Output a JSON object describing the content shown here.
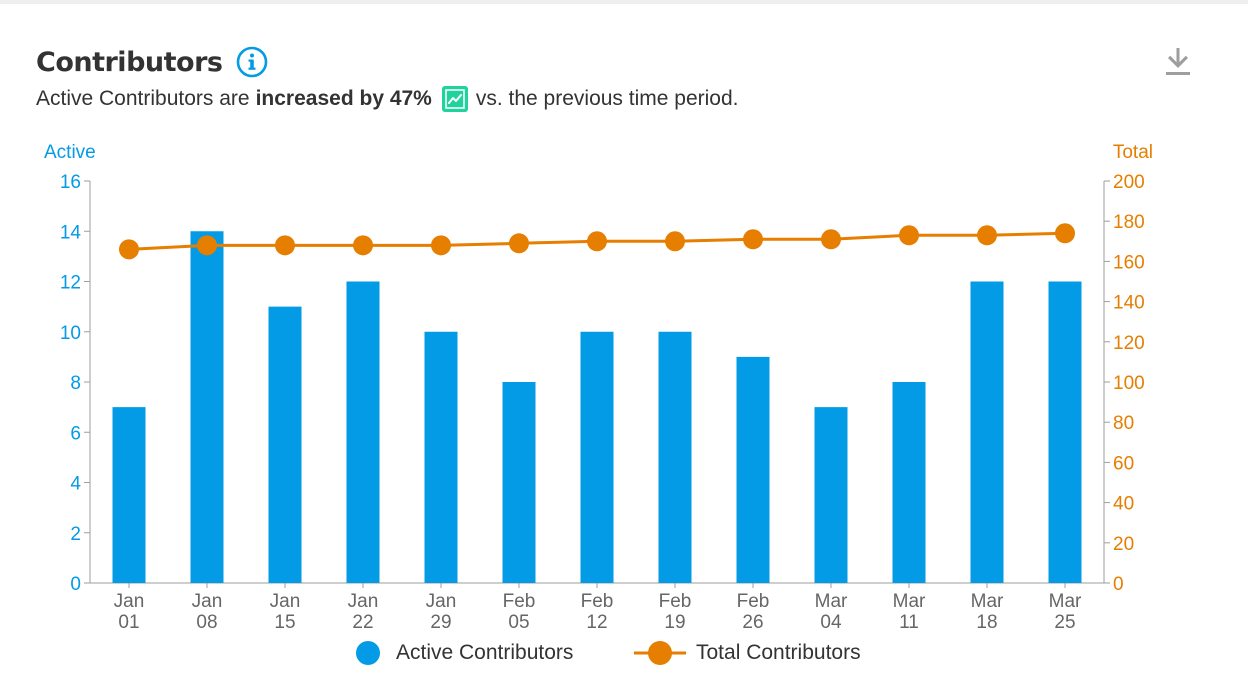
{
  "header": {
    "title": "Contributors",
    "subtitle_prefix": "Active Contributors are",
    "subtitle_bold": "increased by 47%",
    "subtitle_suffix": "vs. the previous time period.",
    "info_icon": "info-circle-icon",
    "trend_icon": "trending-up-icon",
    "download_icon": "download-icon"
  },
  "colors": {
    "bar": "#039be5",
    "line": "#e67e00",
    "trend_badge": "#1ed49c",
    "axis": "#9e9e9e",
    "tick_text_x": "#666666"
  },
  "chart_data": {
    "type": "bar",
    "categories": [
      "Jan 01",
      "Jan 08",
      "Jan 15",
      "Jan 22",
      "Jan 29",
      "Feb 05",
      "Feb 12",
      "Feb 19",
      "Feb 26",
      "Mar 04",
      "Mar 11",
      "Mar 18",
      "Mar 25"
    ],
    "series": [
      {
        "name": "Active Contributors",
        "type": "bar",
        "axis": "left",
        "values": [
          7,
          14,
          11,
          12,
          10,
          8,
          10,
          10,
          9,
          7,
          8,
          12,
          12
        ]
      },
      {
        "name": "Total Contributors",
        "type": "line",
        "axis": "right",
        "values": [
          166,
          168,
          168,
          168,
          168,
          169,
          170,
          170,
          171,
          171,
          173,
          173,
          174
        ]
      }
    ],
    "ylabel_left": "Active",
    "ylabel_right": "Total",
    "ylim_left": [
      0,
      16
    ],
    "yticks_left": [
      0,
      2,
      4,
      6,
      8,
      10,
      12,
      14,
      16
    ],
    "ylim_right": [
      0,
      200
    ],
    "yticks_right": [
      0,
      20,
      40,
      60,
      80,
      100,
      120,
      140,
      160,
      180,
      200
    ],
    "grid": false,
    "legend_position": "bottom"
  }
}
